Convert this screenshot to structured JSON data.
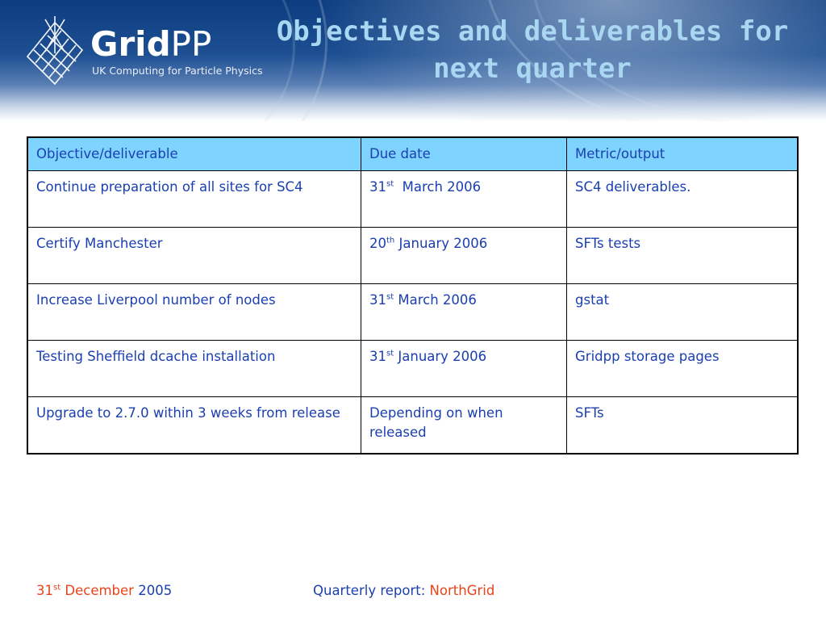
{
  "header": {
    "logo_text_bold": "Grid",
    "logo_text_light": "PP",
    "logo_subtitle": "UK Computing for Particle Physics",
    "title_line1": "Objectives and deliverables for",
    "title_line2": "next quarter"
  },
  "table": {
    "columns": [
      "Objective/deliverable",
      "Due date",
      "Metric/output"
    ],
    "rows": [
      {
        "objective": "Continue preparation of all sites for SC4",
        "due_day": "31",
        "due_suffix": "st",
        "due_rest": "  March 2006",
        "metric": "SC4 deliverables."
      },
      {
        "objective": "Certify Manchester",
        "due_day": "20",
        "due_suffix": "th",
        "due_rest": " January 2006",
        "metric": "SFTs tests"
      },
      {
        "objective": "Increase Liverpool number of nodes",
        "due_day": "31",
        "due_suffix": "st",
        "due_rest": " March 2006",
        "metric": "gstat"
      },
      {
        "objective": "Testing Sheffield dcache installation",
        "due_day": "31",
        "due_suffix": "st",
        "due_rest": " January 2006",
        "metric": "Gridpp storage pages"
      },
      {
        "objective": "Upgrade to 2.7.0 within 3 weeks from release",
        "due_text": "Depending on when released",
        "metric": "SFTs"
      }
    ]
  },
  "footer": {
    "date_day": "31",
    "date_suffix": "st",
    "date_month": " December ",
    "date_year": "2005",
    "report_label": "Quarterly report: ",
    "report_name": "NorthGrid"
  },
  "colors": {
    "text_blue": "#1a3fb0",
    "accent_orange": "#e8441a",
    "header_cell": "#7fd3ff",
    "title": "#a9d6f0"
  },
  "icons": [
    "gridpp-logo-icon"
  ]
}
